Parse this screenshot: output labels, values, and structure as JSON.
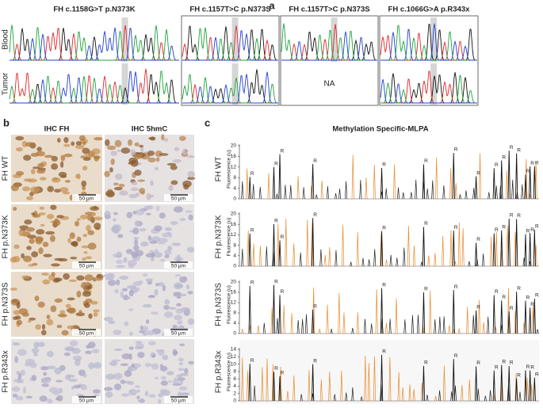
{
  "panel_a": {
    "label": "a",
    "columns": [
      "FH c.1158G>T  p.N373K",
      "FH c.1157T>C p.N373S",
      "FH c.1157T>C p.N373S",
      "FH c.1066G>A p.R343x"
    ],
    "rows": [
      "Blood",
      "Tumor"
    ],
    "missing": "NA"
  },
  "panel_b": {
    "label": "b",
    "columns": [
      "IHC FH",
      "IHC 5hmC"
    ],
    "rows": [
      "FH WT",
      "FH p.N373K",
      "FH p.N373S",
      "FH p.R343x"
    ],
    "scale_bar": "50 µm"
  },
  "panel_c": {
    "label": "c",
    "title": "Methylation Specific-MLPA",
    "y_label": "Fluorescence (u)",
    "peak_label": "R",
    "rows": [
      {
        "name": "FH WT",
        "yticks": [
          0,
          4,
          8,
          12,
          16,
          20
        ]
      },
      {
        "name": "FH p.N373K",
        "yticks": [
          0,
          4,
          8,
          12,
          16,
          20
        ]
      },
      {
        "name": "FH p.N373S",
        "yticks": [
          0,
          4,
          8,
          12,
          16,
          20
        ]
      },
      {
        "name": "FH p.R343x",
        "yticks": [
          0,
          2,
          4,
          6,
          8,
          10,
          12,
          14
        ]
      }
    ]
  }
}
